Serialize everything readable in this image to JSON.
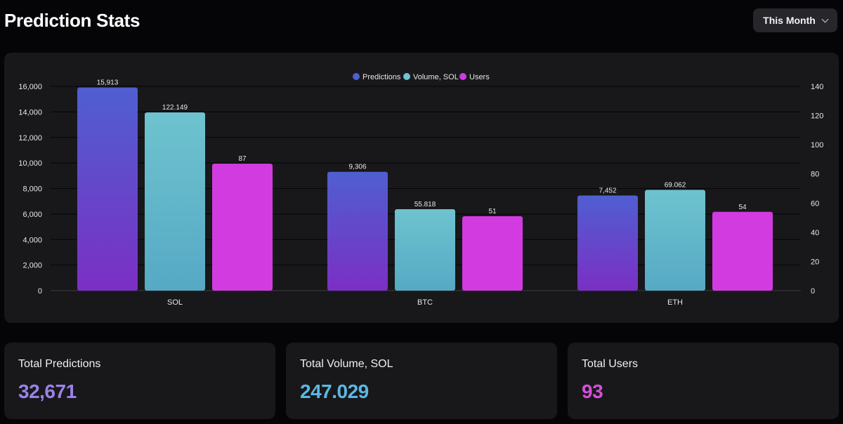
{
  "header": {
    "title": "Prediction Stats",
    "period_label": "This Month"
  },
  "colors": {
    "predictions_top": "#4f5fd0",
    "predictions_bottom": "#7b2fc4",
    "volume_top": "#6ec3cf",
    "volume_bottom": "#56a9c4",
    "users": "#d23be0",
    "total_predictions_value": "#9b82e8",
    "total_volume_value": "#5bb8e2",
    "total_users_value": "#d64fd8"
  },
  "chart_data": {
    "type": "bar",
    "categories": [
      "SOL",
      "BTC",
      "ETH"
    ],
    "series": [
      {
        "name": "Predictions",
        "axis": "left",
        "values": [
          15913,
          9306,
          7452
        ],
        "labels": [
          "15,913",
          "9,306",
          "7,452"
        ]
      },
      {
        "name": "Volume, SOL",
        "axis": "right",
        "values": [
          122.149,
          55.818,
          69.062
        ],
        "labels": [
          "122.149",
          "55.818",
          "69.062"
        ]
      },
      {
        "name": "Users",
        "axis": "right",
        "values": [
          87,
          51,
          54
        ],
        "labels": [
          "87",
          "51",
          "54"
        ]
      }
    ],
    "left_axis": {
      "min": 0,
      "max": 16000,
      "ticks": [
        "0",
        "2,000",
        "4,000",
        "6,000",
        "8,000",
        "10,000",
        "12,000",
        "14,000",
        "16,000"
      ]
    },
    "right_axis": {
      "min": 0,
      "max": 140,
      "ticks": [
        "0",
        "20",
        "40",
        "60",
        "80",
        "100",
        "120",
        "140"
      ]
    },
    "grid": true,
    "legend_position": "top-center"
  },
  "stats": [
    {
      "label": "Total Predictions",
      "value": "32,671"
    },
    {
      "label": "Total Volume, SOL",
      "value": "247.029"
    },
    {
      "label": "Total Users",
      "value": "93"
    }
  ]
}
